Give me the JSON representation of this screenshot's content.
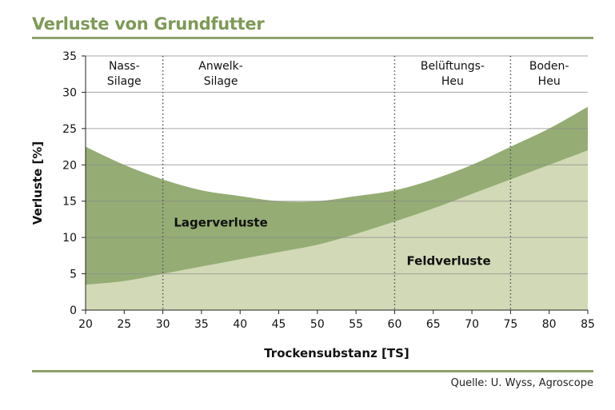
{
  "header": {
    "title": "Verluste von Grundfutter"
  },
  "footer": {
    "source": "Quelle: U. Wyss, Agroscope"
  },
  "colors": {
    "accent": "#7e9a57",
    "rule": "#8ea26a",
    "lager": "#95ad74",
    "feld": "#d2d9b6",
    "edge": "#7f9661",
    "grid": "#8a8a8a"
  },
  "chart_data": {
    "type": "area",
    "xlabel": "Trockensubstanz [TS]",
    "ylabel": "Verluste [%]",
    "xlim": [
      20,
      85
    ],
    "ylim": [
      0,
      35
    ],
    "xticks": [
      20,
      25,
      30,
      35,
      40,
      45,
      50,
      55,
      60,
      65,
      70,
      75,
      80,
      85
    ],
    "yticks": [
      0,
      5,
      10,
      15,
      20,
      25,
      30,
      35
    ],
    "grid": "horizontal",
    "series": [
      {
        "name": "Feldverluste",
        "x": [
          20,
          25,
          30,
          35,
          40,
          45,
          50,
          55,
          60,
          65,
          70,
          75,
          80,
          85
        ],
        "y": [
          3.5,
          4,
          5,
          6,
          7,
          8,
          9,
          10.5,
          12.2,
          14,
          16,
          18,
          20,
          22
        ]
      },
      {
        "name": "Lagerverluste",
        "x": [
          20,
          25,
          30,
          35,
          40,
          45,
          50,
          55,
          60,
          65,
          70,
          75,
          80,
          85
        ],
        "y": [
          22.5,
          20,
          18,
          16.5,
          15.7,
          15,
          15,
          15.7,
          16.5,
          18,
          20,
          22.5,
          25,
          28
        ]
      }
    ],
    "vlines": [
      30,
      60,
      75
    ],
    "regions": [
      {
        "label": [
          "Nass-",
          "Silage"
        ],
        "x": 25
      },
      {
        "label": [
          "Anwelk-",
          "Silage"
        ],
        "x": 37.5
      },
      {
        "label": [
          "Belüftungs-",
          "Heu"
        ],
        "x": 67.5
      },
      {
        "label": [
          "Boden-",
          "Heu"
        ],
        "x": 80
      }
    ],
    "annotations": [
      {
        "text": "Lagerverluste",
        "x": 37.5,
        "y": 11.5
      },
      {
        "text": "Feldverluste",
        "x": 67,
        "y": 6.2
      }
    ]
  }
}
